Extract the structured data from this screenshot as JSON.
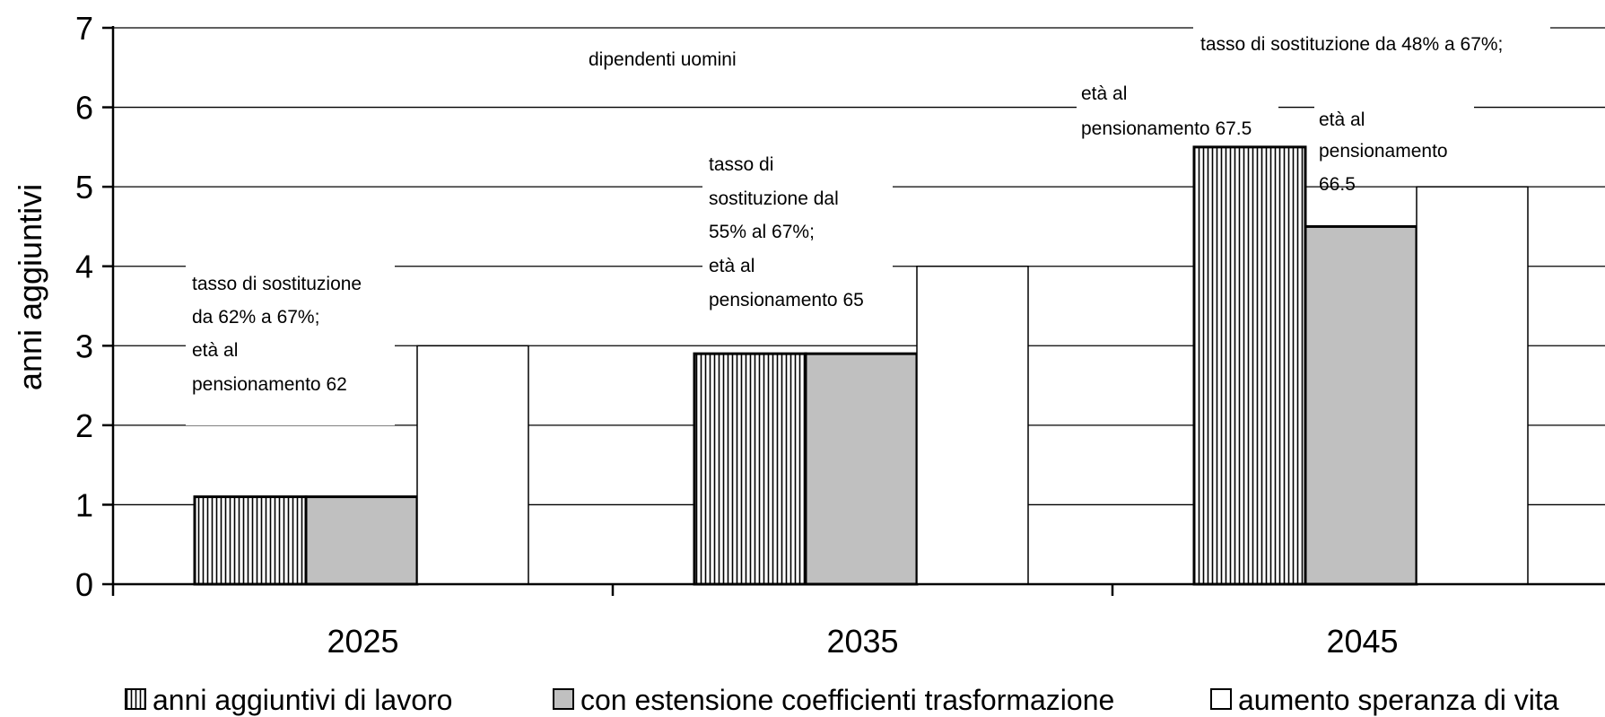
{
  "chart_data": {
    "type": "bar",
    "categories": [
      "2025",
      "2035",
      "2045"
    ],
    "series": [
      {
        "name": "anni aggiuntivi di lavoro",
        "values": [
          1.1,
          2.9,
          5.5
        ],
        "fill": "hatch"
      },
      {
        "name": "con estensione coefficienti trasformazione",
        "values": [
          1.1,
          2.9,
          4.5
        ],
        "fill": "#c0c0c0"
      },
      {
        "name": "aumento speranza di vita",
        "values": [
          3,
          4,
          5
        ],
        "fill": "#ffffff"
      }
    ],
    "ylabel": "anni aggiuntivi",
    "xlabel": "",
    "ylim": [
      0,
      7
    ],
    "yticks": [
      "0",
      "1",
      "2",
      "3",
      "4",
      "5",
      "6",
      "7"
    ],
    "grid": true,
    "legend": "bottom",
    "title": "",
    "annotations": {
      "header": "dipendenti uomini",
      "c2025": [
        "tasso di sostituzione",
        "da 62% a 67%;",
        "età al",
        "pensionamento 62"
      ],
      "c2035": [
        "tasso di",
        "sostituzione dal",
        "55% al 67%;",
        "età al",
        "pensionamento 65"
      ],
      "c2045_top": "tasso di sostituzione da 48% a 67%;",
      "c2045_a": [
        "età al",
        "pensionamento 67.5"
      ],
      "c2045_b": [
        "età al",
        "pensionamento",
        "66.5"
      ]
    }
  }
}
